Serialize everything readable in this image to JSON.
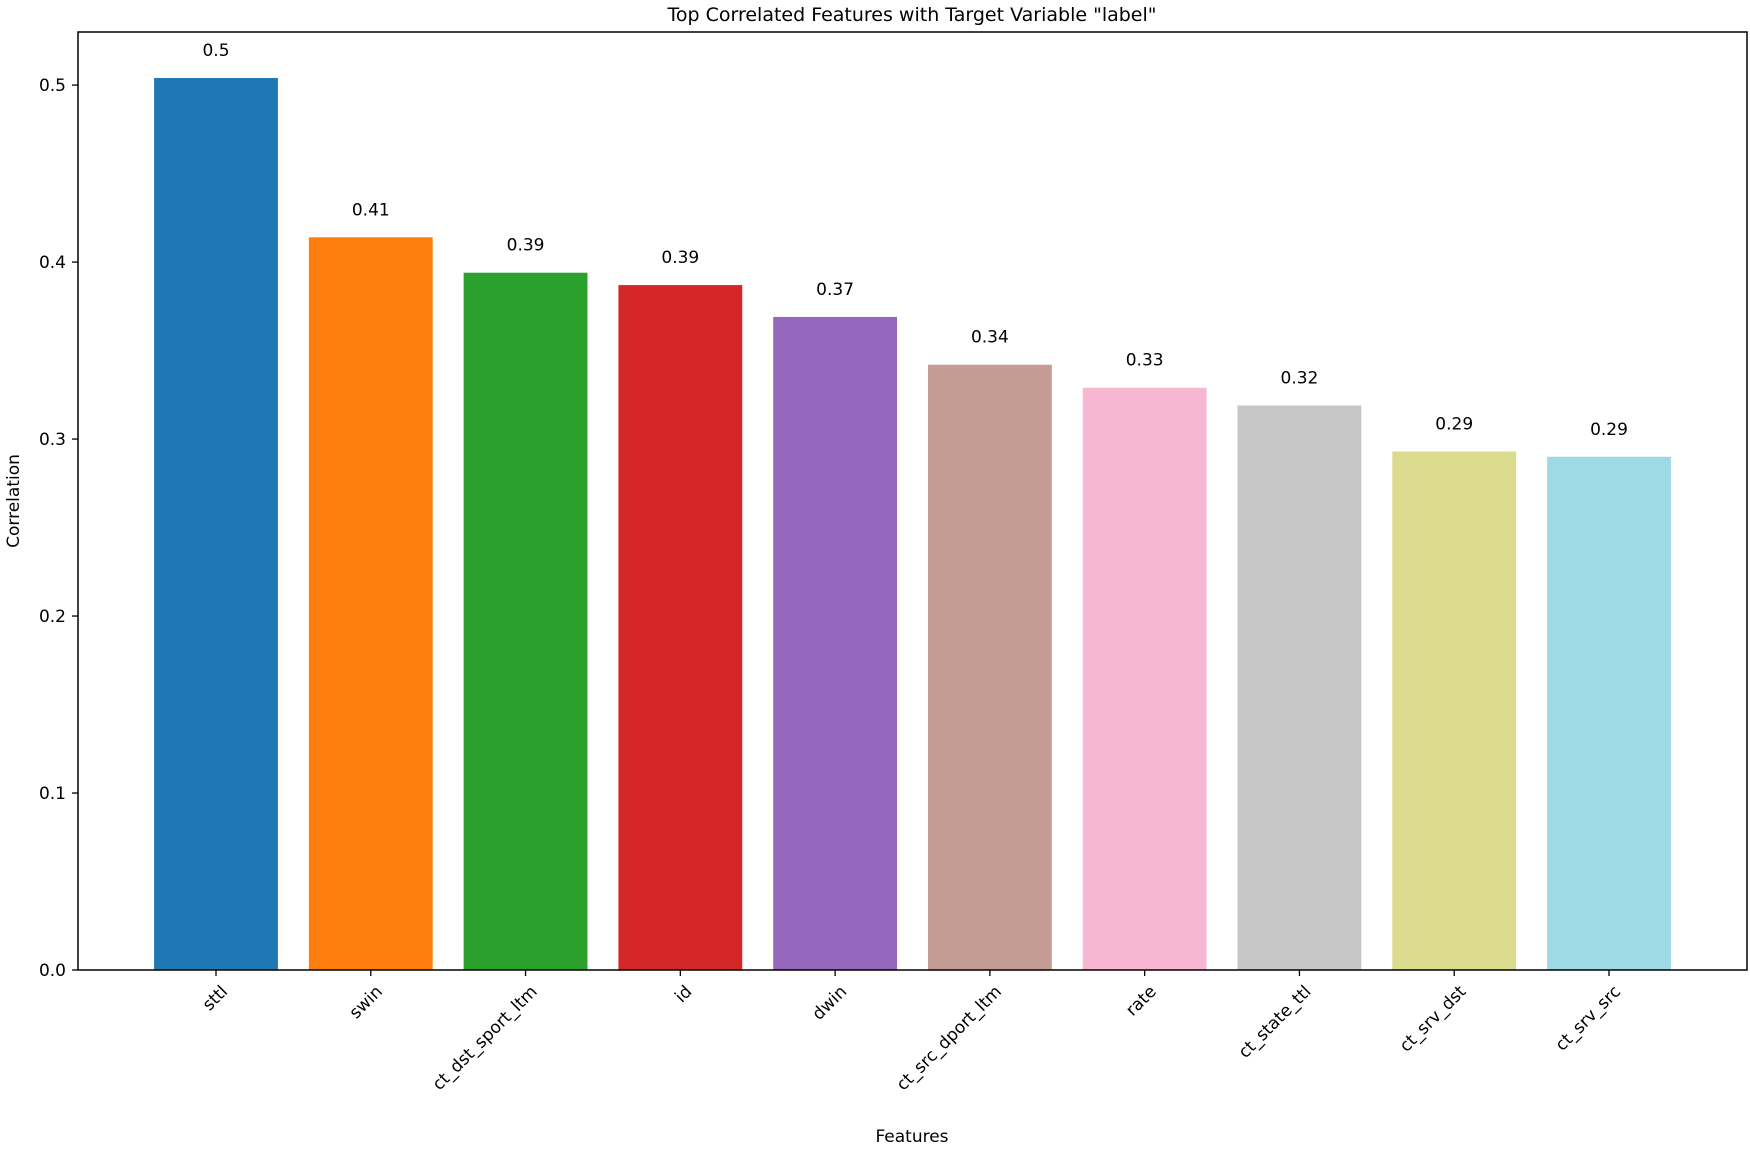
{
  "chart_data": {
    "type": "bar",
    "title": "Top Correlated Features with Target Variable \"label\"",
    "xlabel": "Features",
    "ylabel": "Correlation",
    "categories": [
      "sttl",
      "swin",
      "ct_dst_sport_ltm",
      "id",
      "dwin",
      "ct_src_dport_ltm",
      "rate",
      "ct_state_ttl",
      "ct_srv_dst",
      "ct_srv_src"
    ],
    "values": [
      0.504,
      0.414,
      0.394,
      0.387,
      0.369,
      0.342,
      0.329,
      0.319,
      0.293,
      0.29
    ],
    "data_labels": [
      "0.5",
      "0.41",
      "0.39",
      "0.39",
      "0.37",
      "0.34",
      "0.33",
      "0.32",
      "0.29",
      "0.29"
    ],
    "colors": [
      "#1f77b4",
      "#ff7f0e",
      "#2ca02c",
      "#d62728",
      "#9467bd",
      "#c49c94",
      "#f7b6d2",
      "#c7c7c7",
      "#dbdb8d",
      "#9edae5"
    ],
    "yticks": [
      0.0,
      0.1,
      0.2,
      0.3,
      0.4,
      0.5
    ],
    "ytick_labels": [
      "0.0",
      "0.1",
      "0.2",
      "0.3",
      "0.4",
      "0.5"
    ],
    "ylim": [
      0,
      0.53
    ],
    "grid": false,
    "legend": "none"
  }
}
